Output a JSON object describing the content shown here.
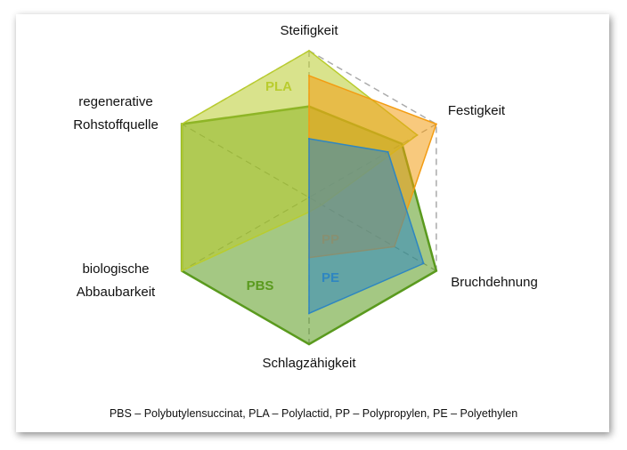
{
  "chart_data": {
    "type": "radar",
    "categories": [
      "Steifigkeit",
      "Festigkeit",
      "Bruchdehnung",
      "Schlagzähigkeit",
      "biologische Abbaubarkeit",
      "regenerative Rohstoffquelle"
    ],
    "series": [
      {
        "name": "PBS",
        "color": "#5a9a1e",
        "values": [
          0.62,
          0.73,
          1.0,
          1.0,
          1.0,
          1.0
        ]
      },
      {
        "name": "PLA",
        "color": "#b9cc2e",
        "values": [
          1.0,
          0.85,
          0.1,
          0.1,
          1.0,
          1.0
        ]
      },
      {
        "name": "PP",
        "color": "#f39c12",
        "values": [
          0.83,
          1.0,
          0.67,
          0.41,
          0,
          0
        ]
      },
      {
        "name": "PE",
        "color": "#2e86c1",
        "values": [
          0.4,
          0.62,
          0.9,
          0.79,
          0,
          0
        ]
      }
    ],
    "ylim": [
      0,
      1
    ],
    "note": "PBS – Polybutylensuccinat, PLA – Polylactid, PP – Polypropylen, PE – Polyethylen"
  }
}
